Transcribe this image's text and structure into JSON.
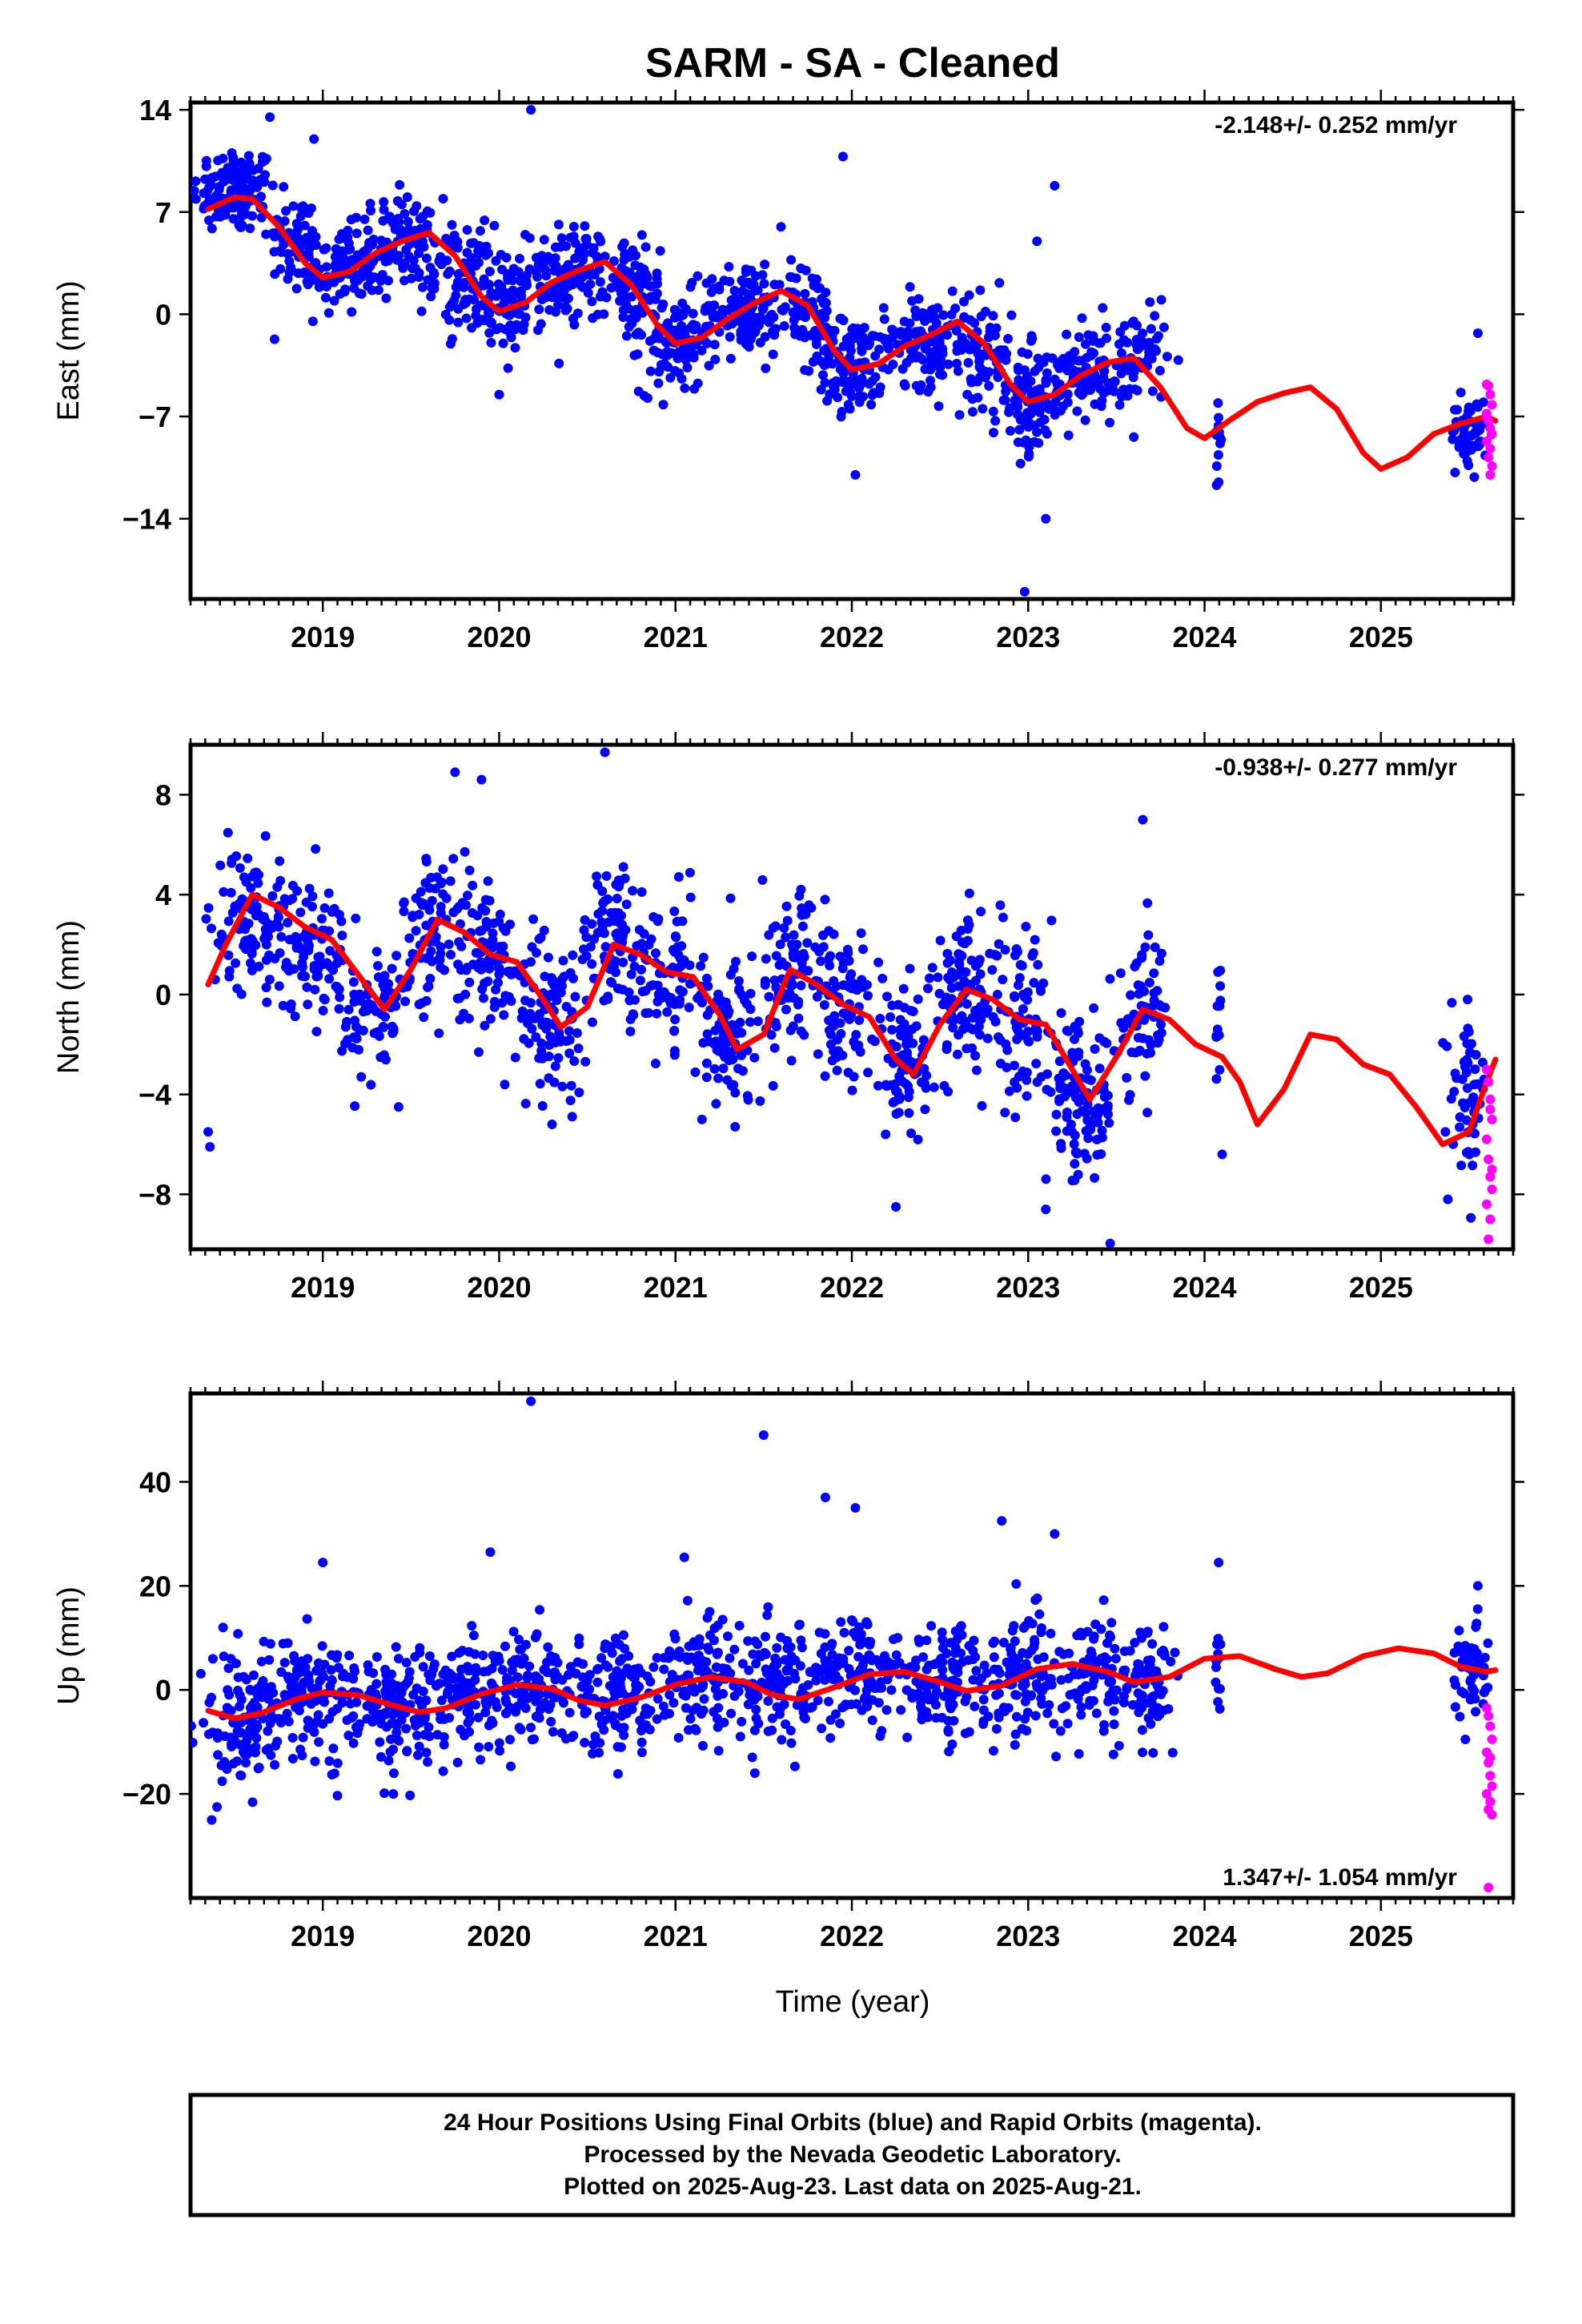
{
  "title": "SARM  - SA - Cleaned",
  "xlabel": "Time (year)",
  "footer": {
    "line1": "24 Hour Positions Using Final Orbits (blue) and Rapid Orbits (magenta).",
    "line2": "Processed by the Nevada Geodetic Laboratory.",
    "line3": "Plotted on 2025-Aug-23. Last data on 2025-Aug-21."
  },
  "colors": {
    "final": "#0000ff",
    "rapid": "#ff00ff",
    "model": "#ff0000"
  },
  "chart_data": [
    {
      "type": "scatter",
      "ylabel": "East (mm)",
      "rate_label": "-2.148+/- 0.252 mm/yr",
      "xlim": [
        2018.25,
        2025.75
      ],
      "ylim": [
        -19.5,
        14.5
      ],
      "yticks": [
        14,
        7,
        0,
        -7,
        -14
      ],
      "xticks": [
        2019,
        2020,
        2021,
        2022,
        2023,
        2024,
        2025
      ],
      "model_curve": {
        "x": [
          2018.35,
          2018.5,
          2018.6,
          2018.75,
          2018.9,
          2019.0,
          2019.15,
          2019.3,
          2019.45,
          2019.6,
          2019.75,
          2019.9,
          2020.0,
          2020.15,
          2020.3,
          2020.45,
          2020.6,
          2020.75,
          2020.9,
          2021.0,
          2021.15,
          2021.3,
          2021.45,
          2021.6,
          2021.75,
          2021.9,
          2022.0,
          2022.15,
          2022.3,
          2022.45,
          2022.6,
          2022.75,
          2022.9,
          2023.0,
          2023.15,
          2023.3,
          2023.45,
          2023.6,
          2023.75,
          2023.9,
          2024.0,
          2024.15,
          2024.3,
          2024.45,
          2024.6,
          2024.75,
          2024.9,
          2025.0,
          2025.15,
          2025.3,
          2025.45,
          2025.6,
          2025.65
        ],
        "y": [
          7.2,
          8.0,
          7.9,
          6.0,
          3.5,
          2.5,
          2.9,
          4.2,
          5.0,
          5.6,
          4.0,
          1.2,
          0.2,
          0.8,
          2.2,
          3.0,
          3.6,
          2.0,
          -0.8,
          -2.0,
          -1.6,
          -0.3,
          0.8,
          1.6,
          0.6,
          -2.5,
          -3.8,
          -3.4,
          -2.2,
          -1.4,
          -0.5,
          -2.0,
          -4.8,
          -6.0,
          -5.5,
          -4.2,
          -3.3,
          -3.0,
          -5.0,
          -7.8,
          -8.5,
          -7.2,
          -6.0,
          -5.4,
          -5.0,
          -6.5,
          -9.5,
          -10.6,
          -9.8,
          -8.2,
          -7.5,
          -7.0,
          -7.3
        ]
      },
      "final_clusters": [
        {
          "x": 2018.5,
          "y": 8.5,
          "sx": 0.12,
          "sy": 1.5,
          "n": 130
        },
        {
          "x": 2018.85,
          "y": 5.0,
          "sx": 0.08,
          "sy": 1.6,
          "n": 60
        },
        {
          "x": 2019.1,
          "y": 3.0,
          "sx": 0.1,
          "sy": 1.5,
          "n": 90
        },
        {
          "x": 2019.45,
          "y": 4.8,
          "sx": 0.12,
          "sy": 1.6,
          "n": 110
        },
        {
          "x": 2019.8,
          "y": 2.5,
          "sx": 0.08,
          "sy": 1.8,
          "n": 70
        },
        {
          "x": 2020.05,
          "y": 0.7,
          "sx": 0.1,
          "sy": 1.6,
          "n": 90
        },
        {
          "x": 2020.4,
          "y": 2.8,
          "sx": 0.12,
          "sy": 1.6,
          "n": 120
        },
        {
          "x": 2020.75,
          "y": 1.5,
          "sx": 0.08,
          "sy": 1.8,
          "n": 70
        },
        {
          "x": 2021.0,
          "y": -2.0,
          "sx": 0.1,
          "sy": 1.7,
          "n": 100
        },
        {
          "x": 2021.4,
          "y": 0.5,
          "sx": 0.12,
          "sy": 1.6,
          "n": 120
        },
        {
          "x": 2021.75,
          "y": 0.0,
          "sx": 0.08,
          "sy": 1.8,
          "n": 70
        },
        {
          "x": 2022.0,
          "y": -3.6,
          "sx": 0.1,
          "sy": 1.6,
          "n": 100
        },
        {
          "x": 2022.4,
          "y": -1.6,
          "sx": 0.12,
          "sy": 1.6,
          "n": 120
        },
        {
          "x": 2022.75,
          "y": -2.5,
          "sx": 0.08,
          "sy": 1.8,
          "n": 70
        },
        {
          "x": 2023.0,
          "y": -6.0,
          "sx": 0.1,
          "sy": 1.8,
          "n": 100
        },
        {
          "x": 2023.35,
          "y": -3.8,
          "sx": 0.12,
          "sy": 1.6,
          "n": 110
        },
        {
          "x": 2023.65,
          "y": -3.0,
          "sx": 0.07,
          "sy": 1.6,
          "n": 60
        },
        {
          "x": 2024.08,
          "y": -8.0,
          "sx": 0.01,
          "sy": 1.4,
          "n": 12
        },
        {
          "x": 2025.5,
          "y": -8.2,
          "sx": 0.05,
          "sy": 1.2,
          "n": 55
        }
      ],
      "final_outliers": [
        {
          "x": 2018.7,
          "y": 13.5
        },
        {
          "x": 2018.95,
          "y": 12.0
        },
        {
          "x": 2020.18,
          "y": 14.0
        },
        {
          "x": 2021.95,
          "y": 10.8
        },
        {
          "x": 2023.15,
          "y": 8.8
        },
        {
          "x": 2023.05,
          "y": 5.0
        },
        {
          "x": 2023.1,
          "y": -14.0
        },
        {
          "x": 2022.98,
          "y": -19.0
        },
        {
          "x": 2024.08,
          "y": -11.5
        },
        {
          "x": 2025.55,
          "y": -1.3
        },
        {
          "x": 2022.02,
          "y": -11.0
        },
        {
          "x": 2020.0,
          "y": -5.5
        }
      ],
      "rapid_points": {
        "x": [
          2025.6,
          2025.61,
          2025.62,
          2025.63,
          2025.6,
          2025.61,
          2025.62,
          2025.63,
          2025.6,
          2025.62,
          2025.61,
          2025.63,
          2025.62,
          2025.6
        ],
        "y": [
          -4.8,
          -4.9,
          -5.5,
          -6.2,
          -6.8,
          -7.3,
          -7.8,
          -8.2,
          -8.7,
          -9.2,
          -9.8,
          -10.4,
          -11.0,
          -7.0
        ]
      }
    },
    {
      "type": "scatter",
      "ylabel": "North (mm)",
      "rate_label": "-0.938+/- 0.277 mm/yr",
      "xlim": [
        2018.25,
        2025.75
      ],
      "ylim": [
        -10.2,
        10.0
      ],
      "yticks": [
        8,
        4,
        0,
        -4,
        -8
      ],
      "xticks": [
        2019,
        2020,
        2021,
        2022,
        2023,
        2024,
        2025
      ],
      "model_curve": {
        "x": [
          2018.35,
          2018.45,
          2018.6,
          2018.75,
          2018.9,
          2019.05,
          2019.2,
          2019.35,
          2019.5,
          2019.65,
          2019.8,
          2019.95,
          2020.1,
          2020.25,
          2020.35,
          2020.5,
          2020.65,
          2020.8,
          2020.95,
          2021.1,
          2021.25,
          2021.35,
          2021.5,
          2021.65,
          2021.8,
          2021.95,
          2022.1,
          2022.25,
          2022.35,
          2022.5,
          2022.65,
          2022.8,
          2022.95,
          2023.1,
          2023.25,
          2023.35,
          2023.5,
          2023.65,
          2023.8,
          2023.95,
          2024.1,
          2024.2,
          2024.3,
          2024.45,
          2024.6,
          2024.75,
          2024.9,
          2025.05,
          2025.2,
          2025.35,
          2025.5,
          2025.6,
          2025.65
        ],
        "y": [
          0.4,
          2.0,
          4.0,
          3.5,
          2.7,
          2.2,
          0.8,
          -0.6,
          1.0,
          3.0,
          2.5,
          1.6,
          1.3,
          -0.2,
          -1.3,
          -0.5,
          2.0,
          1.6,
          0.9,
          0.7,
          -0.8,
          -2.2,
          -1.6,
          1.0,
          0.4,
          -0.4,
          -0.9,
          -2.6,
          -3.2,
          -1.2,
          0.2,
          -0.2,
          -1.0,
          -1.2,
          -3.0,
          -4.2,
          -2.5,
          -0.6,
          -1.0,
          -2.0,
          -2.5,
          -3.5,
          -5.2,
          -3.8,
          -1.6,
          -1.8,
          -2.8,
          -3.2,
          -4.5,
          -6.0,
          -5.5,
          -3.5,
          -2.6
        ]
      },
      "final_clusters": [
        {
          "x": 2018.6,
          "y": 3.0,
          "sx": 0.12,
          "sy": 1.4,
          "n": 110
        },
        {
          "x": 2018.95,
          "y": 1.8,
          "sx": 0.1,
          "sy": 1.4,
          "n": 80
        },
        {
          "x": 2019.3,
          "y": -0.8,
          "sx": 0.1,
          "sy": 1.4,
          "n": 80
        },
        {
          "x": 2019.65,
          "y": 2.8,
          "sx": 0.1,
          "sy": 1.5,
          "n": 90
        },
        {
          "x": 2019.95,
          "y": 1.4,
          "sx": 0.1,
          "sy": 1.4,
          "n": 80
        },
        {
          "x": 2020.3,
          "y": -1.0,
          "sx": 0.1,
          "sy": 1.5,
          "n": 90
        },
        {
          "x": 2020.65,
          "y": 2.2,
          "sx": 0.1,
          "sy": 1.6,
          "n": 90
        },
        {
          "x": 2020.95,
          "y": 0.8,
          "sx": 0.1,
          "sy": 1.4,
          "n": 80
        },
        {
          "x": 2021.3,
          "y": -1.8,
          "sx": 0.1,
          "sy": 1.4,
          "n": 90
        },
        {
          "x": 2021.65,
          "y": 1.0,
          "sx": 0.1,
          "sy": 1.5,
          "n": 90
        },
        {
          "x": 2021.95,
          "y": -0.4,
          "sx": 0.1,
          "sy": 1.4,
          "n": 80
        },
        {
          "x": 2022.3,
          "y": -2.8,
          "sx": 0.1,
          "sy": 1.5,
          "n": 90
        },
        {
          "x": 2022.65,
          "y": 0.2,
          "sx": 0.1,
          "sy": 1.5,
          "n": 90
        },
        {
          "x": 2022.95,
          "y": -1.0,
          "sx": 0.1,
          "sy": 1.4,
          "n": 80
        },
        {
          "x": 2023.3,
          "y": -4.5,
          "sx": 0.1,
          "sy": 1.6,
          "n": 110
        },
        {
          "x": 2023.65,
          "y": -0.8,
          "sx": 0.07,
          "sy": 1.5,
          "n": 70
        },
        {
          "x": 2024.08,
          "y": -2.0,
          "sx": 0.01,
          "sy": 1.6,
          "n": 12
        },
        {
          "x": 2025.5,
          "y": -3.8,
          "sx": 0.05,
          "sy": 1.5,
          "n": 55
        }
      ],
      "final_outliers": [
        {
          "x": 2018.35,
          "y": -5.5
        },
        {
          "x": 2018.36,
          "y": -6.1
        },
        {
          "x": 2019.75,
          "y": 8.9
        },
        {
          "x": 2020.6,
          "y": 9.7
        },
        {
          "x": 2019.9,
          "y": 8.6
        },
        {
          "x": 2023.1,
          "y": -8.6
        },
        {
          "x": 2022.25,
          "y": -8.5
        },
        {
          "x": 2023.65,
          "y": 7.0
        },
        {
          "x": 2025.38,
          "y": -8.2
        },
        {
          "x": 2024.1,
          "y": -6.4
        },
        {
          "x": 2021.15,
          "y": -5.0
        },
        {
          "x": 2020.3,
          "y": -5.2
        }
      ],
      "rapid_points": {
        "x": [
          2025.6,
          2025.61,
          2025.62,
          2025.63,
          2025.6,
          2025.61,
          2025.62,
          2025.63,
          2025.6,
          2025.62,
          2025.61,
          2025.63,
          2025.62
        ],
        "y": [
          -3.0,
          -3.5,
          -4.2,
          -5.0,
          -5.8,
          -6.6,
          -7.3,
          -7.8,
          -8.4,
          -9.0,
          -9.8,
          -7.0,
          -4.6
        ]
      }
    },
    {
      "type": "scatter",
      "ylabel": "Up (mm)",
      "rate_label": "1.347+/- 1.054 mm/yr",
      "xlim": [
        2018.25,
        2025.75
      ],
      "ylim": [
        -40.0,
        57.0
      ],
      "yticks": [
        40,
        20,
        0,
        -20
      ],
      "xticks": [
        2019,
        2020,
        2021,
        2022,
        2023,
        2024,
        2025
      ],
      "model_curve": {
        "x": [
          2018.35,
          2018.5,
          2018.65,
          2018.85,
          2019.0,
          2019.2,
          2019.4,
          2019.55,
          2019.7,
          2019.9,
          2020.1,
          2020.3,
          2020.45,
          2020.6,
          2020.8,
          2021.0,
          2021.2,
          2021.4,
          2021.55,
          2021.7,
          2021.9,
          2022.1,
          2022.3,
          2022.5,
          2022.65,
          2022.85,
          2023.05,
          2023.25,
          2023.45,
          2023.6,
          2023.8,
          2024.0,
          2024.2,
          2024.4,
          2024.55,
          2024.7,
          2024.9,
          2025.1,
          2025.3,
          2025.45,
          2025.6,
          2025.65
        ],
        "y": [
          -4.0,
          -5.5,
          -4.5,
          -1.8,
          -0.5,
          -1.0,
          -3.0,
          -4.3,
          -3.5,
          -0.8,
          1.0,
          0.2,
          -2.0,
          -3.0,
          -1.5,
          1.0,
          2.5,
          1.5,
          -1.0,
          -1.8,
          0.5,
          3.0,
          3.5,
          1.5,
          -0.2,
          0.8,
          4.0,
          5.0,
          3.5,
          1.5,
          2.5,
          6.0,
          6.5,
          4.0,
          2.5,
          3.2,
          6.5,
          8.0,
          7.0,
          4.5,
          3.5,
          3.8
        ]
      },
      "final_clusters": [
        {
          "x": 2018.55,
          "y": -6.0,
          "sx": 0.13,
          "sy": 6.0,
          "n": 120
        },
        {
          "x": 2018.95,
          "y": -1.0,
          "sx": 0.13,
          "sy": 5.5,
          "n": 110
        },
        {
          "x": 2019.4,
          "y": -2.5,
          "sx": 0.14,
          "sy": 5.5,
          "n": 120
        },
        {
          "x": 2019.85,
          "y": -1.0,
          "sx": 0.13,
          "sy": 5.5,
          "n": 110
        },
        {
          "x": 2020.25,
          "y": 0.5,
          "sx": 0.13,
          "sy": 5.5,
          "n": 110
        },
        {
          "x": 2020.7,
          "y": -1.5,
          "sx": 0.13,
          "sy": 5.5,
          "n": 110
        },
        {
          "x": 2021.15,
          "y": 2.0,
          "sx": 0.13,
          "sy": 5.5,
          "n": 110
        },
        {
          "x": 2021.6,
          "y": 1.0,
          "sx": 0.13,
          "sy": 5.5,
          "n": 110
        },
        {
          "x": 2022.05,
          "y": 3.0,
          "sx": 0.13,
          "sy": 5.5,
          "n": 110
        },
        {
          "x": 2022.5,
          "y": 2.0,
          "sx": 0.13,
          "sy": 5.5,
          "n": 110
        },
        {
          "x": 2022.95,
          "y": 3.5,
          "sx": 0.13,
          "sy": 5.5,
          "n": 110
        },
        {
          "x": 2023.4,
          "y": 3.0,
          "sx": 0.13,
          "sy": 5.5,
          "n": 100
        },
        {
          "x": 2023.7,
          "y": 1.5,
          "sx": 0.06,
          "sy": 5.0,
          "n": 60
        },
        {
          "x": 2024.08,
          "y": 3.0,
          "sx": 0.01,
          "sy": 4.5,
          "n": 12
        },
        {
          "x": 2025.5,
          "y": 4.0,
          "sx": 0.05,
          "sy": 5.0,
          "n": 55
        }
      ],
      "final_outliers": [
        {
          "x": 2020.18,
          "y": 55.5
        },
        {
          "x": 2021.5,
          "y": 49.0
        },
        {
          "x": 2021.85,
          "y": 37.0
        },
        {
          "x": 2022.02,
          "y": 35.0
        },
        {
          "x": 2022.85,
          "y": 32.5
        },
        {
          "x": 2023.15,
          "y": 30.0
        },
        {
          "x": 2019.0,
          "y": 24.5
        },
        {
          "x": 2019.95,
          "y": 26.5
        },
        {
          "x": 2021.05,
          "y": 25.5
        },
        {
          "x": 2024.08,
          "y": 24.5
        },
        {
          "x": 2018.37,
          "y": -25.0
        },
        {
          "x": 2018.4,
          "y": -22.5
        },
        {
          "x": 2019.4,
          "y": -20.0
        },
        {
          "x": 2021.45,
          "y": -16.0
        },
        {
          "x": 2025.55,
          "y": 20.0
        }
      ],
      "rapid_points": {
        "x": [
          2025.6,
          2025.61,
          2025.62,
          2025.63,
          2025.6,
          2025.61,
          2025.62,
          2025.63,
          2025.6,
          2025.62,
          2025.61,
          2025.63,
          2025.62,
          2025.61
        ],
        "y": [
          -3.5,
          -5.0,
          -7.0,
          -9.5,
          -12.0,
          -14.0,
          -16.5,
          -18.5,
          -20.0,
          -21.5,
          -23.0,
          -24.0,
          -13.0,
          -38.0
        ]
      }
    }
  ]
}
